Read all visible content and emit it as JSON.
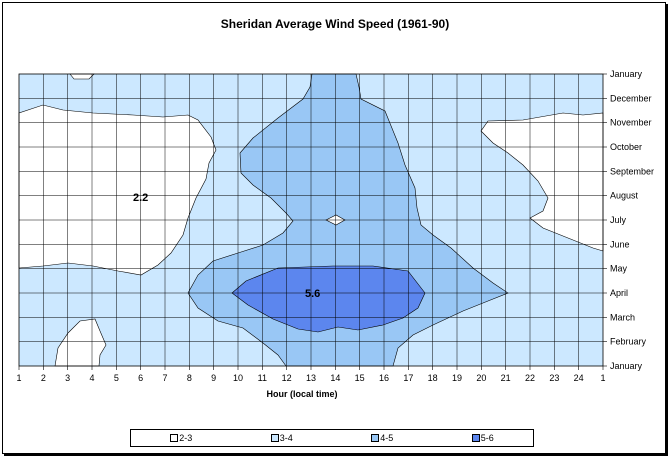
{
  "chart_data": {
    "type": "heatmap",
    "title": "Sheridan Average Wind Speed (1961-90)",
    "xlabel": "Hour (local time)",
    "ylabel": "",
    "x_ticks": [
      "1",
      "2",
      "3",
      "4",
      "5",
      "6",
      "7",
      "8",
      "9",
      "10",
      "11",
      "12",
      "13",
      "14",
      "15",
      "16",
      "17",
      "18",
      "19",
      "20",
      "21",
      "22",
      "23",
      "24",
      "1"
    ],
    "y_ticks": [
      "January",
      "February",
      "March",
      "April",
      "May",
      "June",
      "July",
      "August",
      "September",
      "October",
      "November",
      "December",
      "January"
    ],
    "legend": [
      "2-3",
      "3-4",
      "4-5",
      "5-6"
    ],
    "legend_placement": "bottom",
    "colors": {
      "2-3": "#ffffff",
      "3-4": "#cce8ff",
      "4-5": "#99c7f5",
      "5-6": "#5c86ee"
    },
    "grid": true,
    "annotations": [
      "2.2",
      "5.6"
    ],
    "values_by_month": {
      "January": [
        3.2,
        3.2,
        3.2,
        3.2,
        3.2,
        3.2,
        3.2,
        3.3,
        3.5,
        3.7,
        3.9,
        4.2,
        4.6,
        4.6,
        4.6,
        4.3,
        3.9,
        3.6,
        3.4,
        3.3,
        3.2,
        3.2,
        3.2,
        3.2
      ],
      "February": [
        3.1,
        3.0,
        2.9,
        2.9,
        3.0,
        3.1,
        3.2,
        3.5,
        3.8,
        4.1,
        4.3,
        4.5,
        4.7,
        4.7,
        4.7,
        4.5,
        4.2,
        3.8,
        3.5,
        3.3,
        3.2,
        3.2,
        3.2,
        3.1
      ],
      "March": [
        3.2,
        3.1,
        3.1,
        3.1,
        3.1,
        3.2,
        3.3,
        3.7,
        4.2,
        4.8,
        5.1,
        5.3,
        5.5,
        5.6,
        5.5,
        5.3,
        5.0,
        4.6,
        4.2,
        3.8,
        3.5,
        3.3,
        3.2,
        3.2
      ],
      "April": [
        3.3,
        3.3,
        3.3,
        3.3,
        3.3,
        3.4,
        3.6,
        4.1,
        4.6,
        5.2,
        5.4,
        5.5,
        5.6,
        5.6,
        5.6,
        5.5,
        5.3,
        4.9,
        4.6,
        4.3,
        4.0,
        3.6,
        3.4,
        3.3
      ],
      "May": [
        3.0,
        3.0,
        3.0,
        2.9,
        2.9,
        2.9,
        3.1,
        3.6,
        4.1,
        4.5,
        4.8,
        5.0,
        5.1,
        5.1,
        5.1,
        5.0,
        4.9,
        4.6,
        4.3,
        3.9,
        3.5,
        3.3,
        3.1,
        3.0
      ],
      "June": [
        2.7,
        2.6,
        2.5,
        2.5,
        2.4,
        2.5,
        2.8,
        3.1,
        3.5,
        3.9,
        4.2,
        4.4,
        4.5,
        4.5,
        4.5,
        4.4,
        4.2,
        4.0,
        3.7,
        3.4,
        3.2,
        3.0,
        2.9,
        2.8
      ],
      "July": [
        2.4,
        2.3,
        2.2,
        2.2,
        2.2,
        2.2,
        2.4,
        2.8,
        3.2,
        3.6,
        3.9,
        4.0,
        4.1,
        4.1,
        4.1,
        4.0,
        3.8,
        3.6,
        3.4,
        3.2,
        3.0,
        2.8,
        2.7,
        2.5
      ],
      "August": [
        2.3,
        2.2,
        2.2,
        2.2,
        2.2,
        2.2,
        2.3,
        2.7,
        3.1,
        3.5,
        3.8,
        4.0,
        4.2,
        4.3,
        4.3,
        4.2,
        4.0,
        3.7,
        3.4,
        3.1,
        2.9,
        2.8,
        2.6,
        2.5
      ],
      "September": [
        2.5,
        2.4,
        2.4,
        2.4,
        2.4,
        2.4,
        2.5,
        2.8,
        3.1,
        3.4,
        3.6,
        3.8,
        4.0,
        4.1,
        4.1,
        4.0,
        3.8,
        3.5,
        3.2,
        3.0,
        2.9,
        2.8,
        2.7,
        2.6
      ],
      "October": [
        2.7,
        2.6,
        2.6,
        2.6,
        2.6,
        2.6,
        2.7,
        2.9,
        3.1,
        3.3,
        3.5,
        3.7,
        3.9,
        4.0,
        4.0,
        3.9,
        3.7,
        3.4,
        3.2,
        3.1,
        3.0,
        3.0,
        2.9,
        2.8
      ],
      "November": [
        3.0,
        2.9,
        2.9,
        2.9,
        2.9,
        2.9,
        2.9,
        3.0,
        3.2,
        3.4,
        3.6,
        3.7,
        3.8,
        3.9,
        3.9,
        3.8,
        3.6,
        3.4,
        3.3,
        3.2,
        3.1,
        3.1,
        3.1,
        3.0
      ],
      "December": [
        3.1,
        3.1,
        3.1,
        3.1,
        3.1,
        3.1,
        3.1,
        3.2,
        3.3,
        3.4,
        3.5,
        3.7,
        3.9,
        4.0,
        4.1,
        3.9,
        3.6,
        3.5,
        3.4,
        3.3,
        3.3,
        3.2,
        3.2,
        3.1
      ]
    }
  }
}
